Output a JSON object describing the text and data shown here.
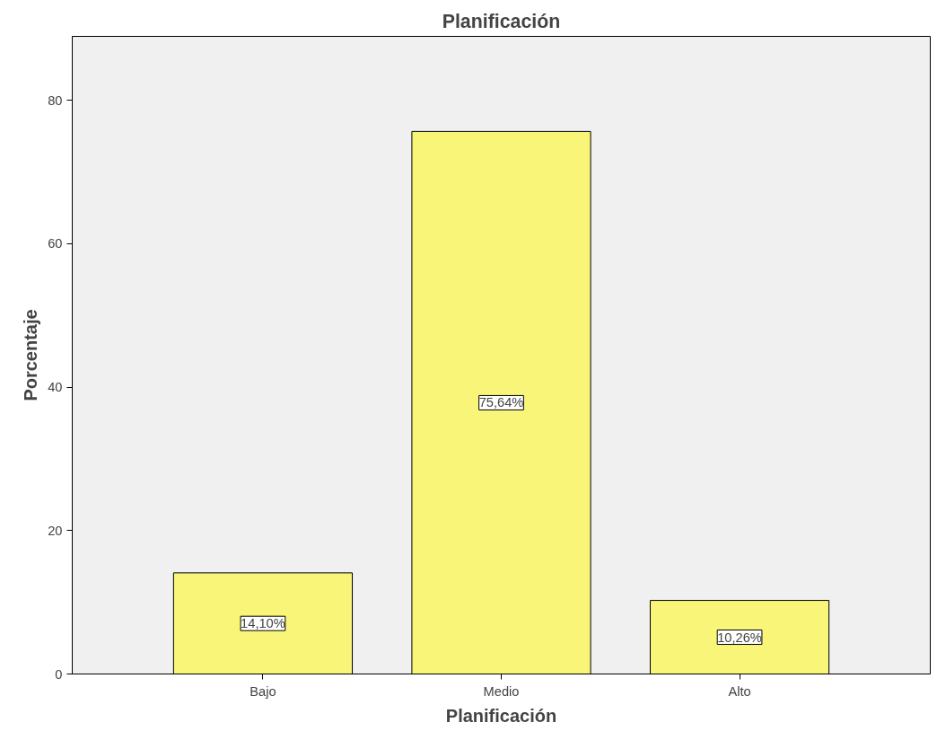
{
  "chart_data": {
    "type": "bar",
    "title": "Planificación",
    "xlabel": "Planificación",
    "ylabel": "Porcentaje",
    "categories": [
      "Bajo",
      "Medio",
      "Alto"
    ],
    "values": [
      14.1,
      75.64,
      10.26
    ],
    "value_labels": [
      "14,10%",
      "75,64%",
      "10,26%"
    ],
    "color": "#f9f578",
    "ylim": [
      0,
      88.9
    ],
    "yticks": [
      0,
      20,
      40,
      60,
      80
    ],
    "grid": false
  }
}
